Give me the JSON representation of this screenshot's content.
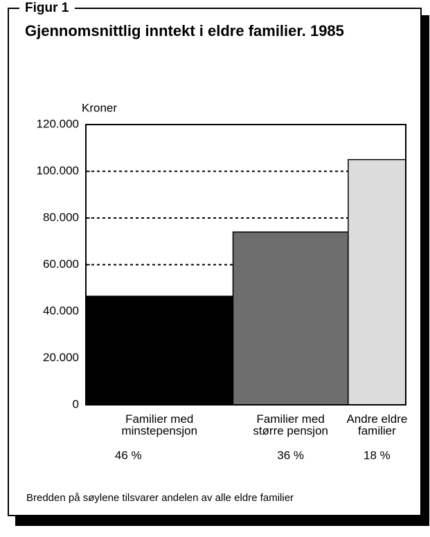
{
  "chart_data": {
    "type": "bar",
    "figure_label": "Figur 1",
    "title": "Gjennomsnittlig inntekt i eldre familier. 1985",
    "y_label": "Kroner",
    "categories": [
      "Familier med\nminstepensjon",
      "Familier med\nstørre pensjon",
      "Andre eldre\nfamilier"
    ],
    "values": [
      46500,
      74000,
      105000
    ],
    "widths": [
      46,
      36,
      18
    ],
    "width_labels": [
      "46 %",
      "36 %",
      "18 %"
    ],
    "colors": [
      "#000000",
      "#6e6e6e",
      "#dcdcdc"
    ],
    "ylim": [
      0,
      120000
    ],
    "yticks": [
      0,
      {
        "value": 20000,
        "label": "20.000"
      },
      {
        "value": 40000,
        "label": "40.000"
      },
      {
        "value": 60000,
        "label": "60.000"
      },
      {
        "value": 80000,
        "label": "80.000"
      },
      {
        "value": 100000,
        "label": "100.000"
      },
      {
        "value": 120000,
        "label": "120.000"
      }
    ],
    "grid": true,
    "note": "Bredden på søylene tilsvarer andelen av alle eldre familier"
  }
}
